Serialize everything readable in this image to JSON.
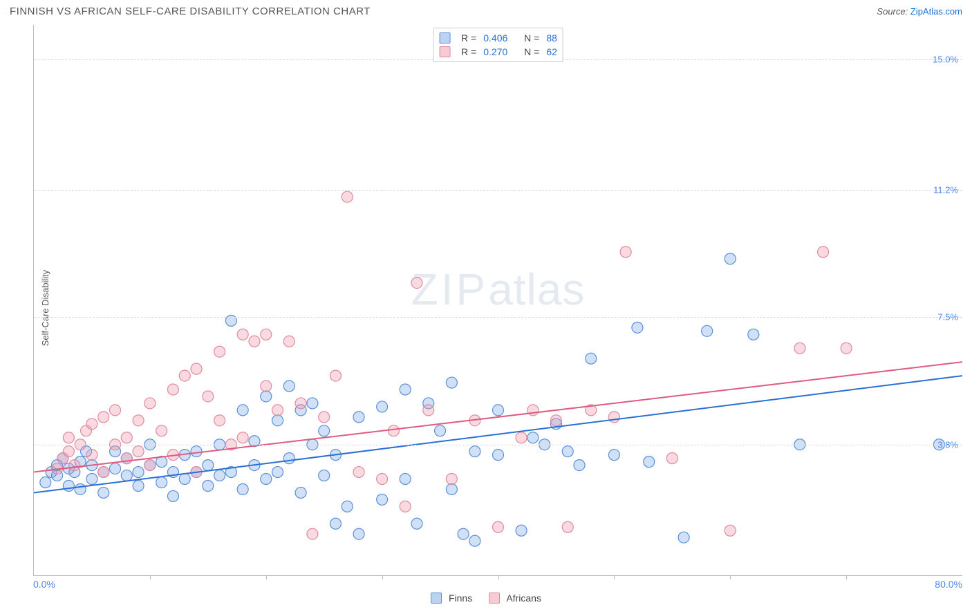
{
  "header": {
    "title": "FINNISH VS AFRICAN SELF-CARE DISABILITY CORRELATION CHART",
    "source_label": "Source:",
    "source_name": "ZipAtlas.com"
  },
  "chart": {
    "type": "scatter",
    "ylabel": "Self-Care Disability",
    "xlim": [
      0,
      80
    ],
    "ylim": [
      0,
      16
    ],
    "x_ticks": [
      10,
      20,
      30,
      40,
      50,
      60,
      70
    ],
    "y_gridlines": [
      3.8,
      7.5,
      11.2,
      15.0
    ],
    "y_tick_labels": [
      "3.8%",
      "7.5%",
      "11.2%",
      "15.0%"
    ],
    "x_min_label": "0.0%",
    "x_max_label": "80.0%",
    "background_color": "#ffffff",
    "grid_color": "#dddddd",
    "axis_color": "#bbbbbb",
    "tick_label_color": "#4a86e8",
    "marker_radius": 8,
    "marker_stroke_width": 1.2,
    "line_width": 2,
    "watermark": "ZIPatlas",
    "series": [
      {
        "name": "Finns",
        "fill": "rgba(120,165,230,0.35)",
        "stroke": "#5b8fd6",
        "line_color": "#2a6fd6",
        "R": "0.406",
        "N": "88",
        "trend": {
          "x1": 0,
          "y1": 2.4,
          "x2": 80,
          "y2": 5.8
        },
        "points": [
          [
            1,
            2.7
          ],
          [
            1.5,
            3.0
          ],
          [
            2,
            3.2
          ],
          [
            2,
            2.9
          ],
          [
            2.5,
            3.4
          ],
          [
            3,
            2.6
          ],
          [
            3,
            3.1
          ],
          [
            3.5,
            3.0
          ],
          [
            4,
            3.3
          ],
          [
            4,
            2.5
          ],
          [
            4.5,
            3.6
          ],
          [
            5,
            2.8
          ],
          [
            5,
            3.2
          ],
          [
            6,
            3.0
          ],
          [
            6,
            2.4
          ],
          [
            7,
            3.1
          ],
          [
            7,
            3.6
          ],
          [
            8,
            2.9
          ],
          [
            8,
            3.4
          ],
          [
            9,
            3.0
          ],
          [
            9,
            2.6
          ],
          [
            10,
            3.2
          ],
          [
            10,
            3.8
          ],
          [
            11,
            2.7
          ],
          [
            11,
            3.3
          ],
          [
            12,
            3.0
          ],
          [
            12,
            2.3
          ],
          [
            13,
            3.5
          ],
          [
            13,
            2.8
          ],
          [
            14,
            3.0
          ],
          [
            14,
            3.6
          ],
          [
            15,
            2.6
          ],
          [
            15,
            3.2
          ],
          [
            16,
            3.8
          ],
          [
            16,
            2.9
          ],
          [
            17,
            3.0
          ],
          [
            17,
            7.4
          ],
          [
            18,
            2.5
          ],
          [
            18,
            4.8
          ],
          [
            19,
            3.2
          ],
          [
            19,
            3.9
          ],
          [
            20,
            2.8
          ],
          [
            20,
            5.2
          ],
          [
            21,
            4.5
          ],
          [
            21,
            3.0
          ],
          [
            22,
            5.5
          ],
          [
            22,
            3.4
          ],
          [
            23,
            4.8
          ],
          [
            23,
            2.4
          ],
          [
            24,
            3.8
          ],
          [
            24,
            5.0
          ],
          [
            25,
            2.9
          ],
          [
            25,
            4.2
          ],
          [
            26,
            3.5
          ],
          [
            26,
            1.5
          ],
          [
            27,
            2.0
          ],
          [
            28,
            1.2
          ],
          [
            28,
            4.6
          ],
          [
            30,
            2.2
          ],
          [
            30,
            4.9
          ],
          [
            32,
            5.4
          ],
          [
            32,
            2.8
          ],
          [
            33,
            1.5
          ],
          [
            34,
            5.0
          ],
          [
            35,
            4.2
          ],
          [
            36,
            2.5
          ],
          [
            36,
            5.6
          ],
          [
            37,
            1.2
          ],
          [
            38,
            3.6
          ],
          [
            38,
            1.0
          ],
          [
            40,
            4.8
          ],
          [
            40,
            3.5
          ],
          [
            42,
            1.3
          ],
          [
            43,
            4.0
          ],
          [
            44,
            3.8
          ],
          [
            45,
            4.4
          ],
          [
            46,
            3.6
          ],
          [
            47,
            3.2
          ],
          [
            48,
            6.3
          ],
          [
            50,
            3.5
          ],
          [
            52,
            7.2
          ],
          [
            53,
            3.3
          ],
          [
            56,
            1.1
          ],
          [
            58,
            7.1
          ],
          [
            60,
            9.2
          ],
          [
            62,
            7.0
          ],
          [
            66,
            3.8
          ],
          [
            78,
            3.8
          ]
        ]
      },
      {
        "name": "Africans",
        "fill": "rgba(240,150,170,0.35)",
        "stroke": "#e08aa0",
        "line_color": "#e05a80",
        "R": "0.270",
        "N": "62",
        "trend": {
          "x1": 0,
          "y1": 3.0,
          "x2": 80,
          "y2": 6.2
        },
        "points": [
          [
            2,
            3.1
          ],
          [
            2.5,
            3.4
          ],
          [
            3,
            3.6
          ],
          [
            3,
            4.0
          ],
          [
            3.5,
            3.2
          ],
          [
            4,
            3.8
          ],
          [
            4.5,
            4.2
          ],
          [
            5,
            3.5
          ],
          [
            5,
            4.4
          ],
          [
            6,
            3.0
          ],
          [
            6,
            4.6
          ],
          [
            7,
            3.8
          ],
          [
            7,
            4.8
          ],
          [
            8,
            3.4
          ],
          [
            8,
            4.0
          ],
          [
            9,
            4.5
          ],
          [
            9,
            3.6
          ],
          [
            10,
            5.0
          ],
          [
            10,
            3.2
          ],
          [
            11,
            4.2
          ],
          [
            12,
            5.4
          ],
          [
            12,
            3.5
          ],
          [
            13,
            5.8
          ],
          [
            14,
            3.0
          ],
          [
            14,
            6.0
          ],
          [
            15,
            5.2
          ],
          [
            16,
            4.5
          ],
          [
            16,
            6.5
          ],
          [
            17,
            3.8
          ],
          [
            18,
            7.0
          ],
          [
            18,
            4.0
          ],
          [
            19,
            6.8
          ],
          [
            20,
            5.5
          ],
          [
            20,
            7.0
          ],
          [
            21,
            4.8
          ],
          [
            22,
            6.8
          ],
          [
            23,
            5.0
          ],
          [
            24,
            1.2
          ],
          [
            25,
            4.6
          ],
          [
            26,
            5.8
          ],
          [
            27,
            11.0
          ],
          [
            28,
            3.0
          ],
          [
            30,
            2.8
          ],
          [
            31,
            4.2
          ],
          [
            32,
            2.0
          ],
          [
            33,
            8.5
          ],
          [
            34,
            4.8
          ],
          [
            36,
            2.8
          ],
          [
            38,
            4.5
          ],
          [
            40,
            1.4
          ],
          [
            42,
            4.0
          ],
          [
            43,
            4.8
          ],
          [
            45,
            4.5
          ],
          [
            46,
            1.4
          ],
          [
            48,
            4.8
          ],
          [
            50,
            4.6
          ],
          [
            51,
            9.4
          ],
          [
            55,
            3.4
          ],
          [
            60,
            1.3
          ],
          [
            66,
            6.6
          ],
          [
            68,
            9.4
          ],
          [
            70,
            6.6
          ]
        ]
      }
    ],
    "legend_top": {
      "r_label": "R =",
      "n_label": "N ="
    },
    "legend_bottom": {
      "items": [
        "Finns",
        "Africans"
      ]
    }
  }
}
